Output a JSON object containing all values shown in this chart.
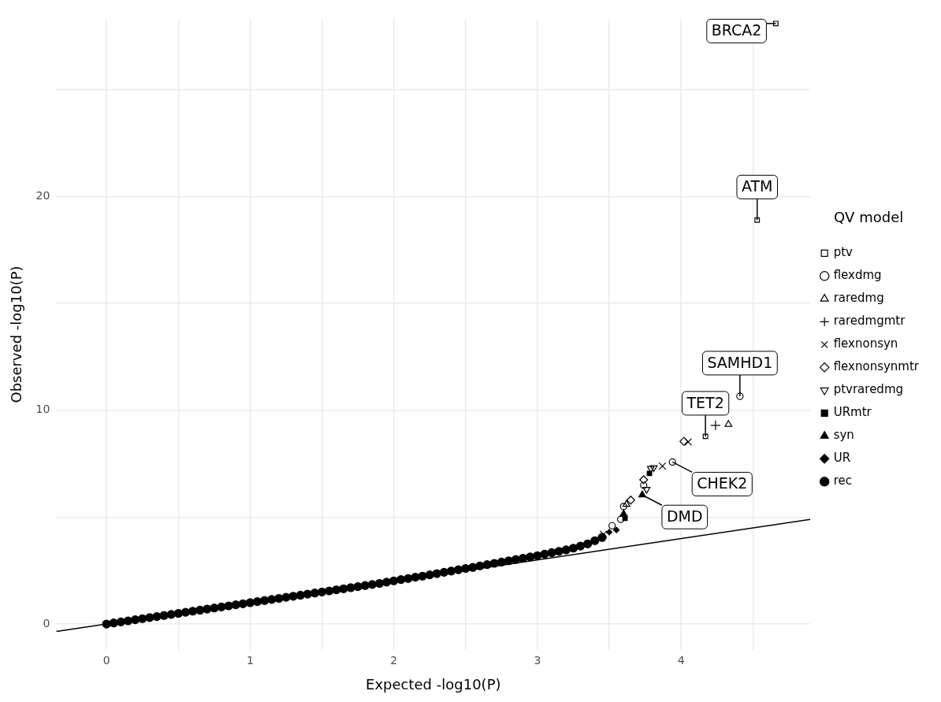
{
  "chart_data": {
    "type": "scatter",
    "xlabel": "Expected -log10(P)",
    "ylabel": "Observed -log10(P)",
    "legend_title": "QV model",
    "legend": "right",
    "grid": true,
    "xlim": [
      -0.35,
      4.9
    ],
    "xticks": [
      0,
      {
        "value": 0.5,
        "label": null
      },
      1,
      {
        "value": 1.5,
        "label": null
      },
      2,
      {
        "value": 2.5,
        "label": null
      },
      3,
      {
        "value": 3.5,
        "label": null
      },
      4,
      {
        "value": 4.5,
        "label": null
      }
    ],
    "ylim": [
      -1.2,
      28.3
    ],
    "yticks": [
      0,
      {
        "value": 5,
        "label": null
      },
      10,
      {
        "value": 15,
        "label": null
      },
      20,
      {
        "value": 25,
        "label": null
      }
    ],
    "series": [
      {
        "name": "ptv",
        "color": "#000000",
        "marker": "square-open",
        "x": [
          4.66,
          4.53,
          4.17
        ],
        "values": [
          28.1,
          18.9,
          8.78
        ]
      },
      {
        "name": "flexdmg",
        "color": "#000000",
        "marker": "circle-open",
        "x": [
          4.41,
          3.94,
          3.74,
          3.6,
          3.58,
          3.52
        ],
        "values": [
          10.66,
          7.58,
          6.49,
          5.5,
          4.9,
          4.6
        ]
      },
      {
        "name": "raredmg",
        "color": "#000000",
        "marker": "triangle-open",
        "x": [
          4.33,
          3.62
        ],
        "values": [
          9.34,
          5.6
        ]
      },
      {
        "name": "raredmgmtr",
        "color": "#000000",
        "marker": "cross",
        "x": [
          4.24
        ],
        "values": [
          9.3
        ]
      },
      {
        "name": "flexnonsyn",
        "color": "#000000",
        "marker": "x",
        "x": [
          4.05,
          3.87,
          3.46
        ],
        "values": [
          8.52,
          7.39,
          4.2
        ]
      },
      {
        "name": "flexnonsynmtr",
        "color": "#000000",
        "marker": "diamond-open",
        "x": [
          4.02,
          3.74,
          3.65
        ],
        "values": [
          8.55,
          6.75,
          5.8
        ]
      },
      {
        "name": "ptvraredmg",
        "color": "#000000",
        "marker": "triangle-down-open",
        "x": [
          3.79,
          3.81,
          3.76
        ],
        "values": [
          7.28,
          7.32,
          6.3
        ]
      },
      {
        "name": "URmtr",
        "color": "#000000",
        "marker": "square",
        "x": [
          3.78,
          3.61
        ],
        "values": [
          7.05,
          4.95
        ]
      },
      {
        "name": "syn",
        "color": "#000000",
        "marker": "triangle",
        "x": [
          3.73,
          3.6
        ],
        "values": [
          6.04,
          5.15
        ]
      },
      {
        "name": "UR",
        "color": "#000000",
        "marker": "diamond",
        "x": [
          3.55,
          3.5
        ],
        "values": [
          4.4,
          4.3
        ]
      },
      {
        "name": "rec",
        "color": "#000000",
        "marker": "circle",
        "x": [
          0,
          0.05,
          0.1,
          0.15,
          0.2,
          0.25,
          0.3,
          0.35,
          0.4,
          0.45,
          0.5,
          0.55,
          0.6,
          0.65,
          0.7,
          0.75,
          0.8,
          0.85,
          0.9,
          0.95,
          1,
          1.05,
          1.1,
          1.15,
          1.2,
          1.25,
          1.3,
          1.35,
          1.4,
          1.45,
          1.5,
          1.55,
          1.6,
          1.65,
          1.7,
          1.75,
          1.8,
          1.85,
          1.9,
          1.95,
          2,
          2.05,
          2.1,
          2.15,
          2.2,
          2.25,
          2.3,
          2.35,
          2.4,
          2.45,
          2.5,
          2.55,
          2.6,
          2.65,
          2.7,
          2.75,
          2.8,
          2.85,
          2.9,
          2.95,
          3,
          3.05,
          3.1,
          3.15,
          3.2,
          3.25,
          3.3,
          3.35,
          3.4,
          3.45
        ],
        "values": [
          0,
          0.05,
          0.1,
          0.15,
          0.2,
          0.25,
          0.3,
          0.35,
          0.4,
          0.45,
          0.5,
          0.55,
          0.6,
          0.65,
          0.7,
          0.75,
          0.8,
          0.85,
          0.9,
          0.95,
          1,
          1.05,
          1.1,
          1.15,
          1.2,
          1.25,
          1.3,
          1.35,
          1.4,
          1.45,
          1.5,
          1.55,
          1.6,
          1.65,
          1.7,
          1.75,
          1.8,
          1.85,
          1.9,
          1.96,
          2.02,
          2.08,
          2.13,
          2.19,
          2.24,
          2.3,
          2.36,
          2.42,
          2.48,
          2.54,
          2.6,
          2.65,
          2.72,
          2.78,
          2.84,
          2.9,
          2.96,
          3.02,
          3.08,
          3.14,
          3.2,
          3.27,
          3.34,
          3.4,
          3.47,
          3.55,
          3.65,
          3.75,
          3.9,
          4.05
        ]
      },
      {
        "type": "line",
        "color": "#000000",
        "x": [
          -0.35,
          4.9
        ],
        "values": [
          -0.35,
          4.9
        ]
      }
    ],
    "annotations": [
      {
        "text": "BRCA2",
        "x": 4.66,
        "y": 28.1
      },
      {
        "text": "ATM",
        "x": 4.53,
        "y": 18.9
      },
      {
        "text": "SAMHD1",
        "x": 4.41,
        "y": 10.66
      },
      {
        "text": "TET2",
        "x": 4.17,
        "y": 8.78
      },
      {
        "text": "CHEK2",
        "x": 3.94,
        "y": 7.58
      },
      {
        "text": "DMD",
        "x": 3.73,
        "y": 6.04
      }
    ]
  }
}
